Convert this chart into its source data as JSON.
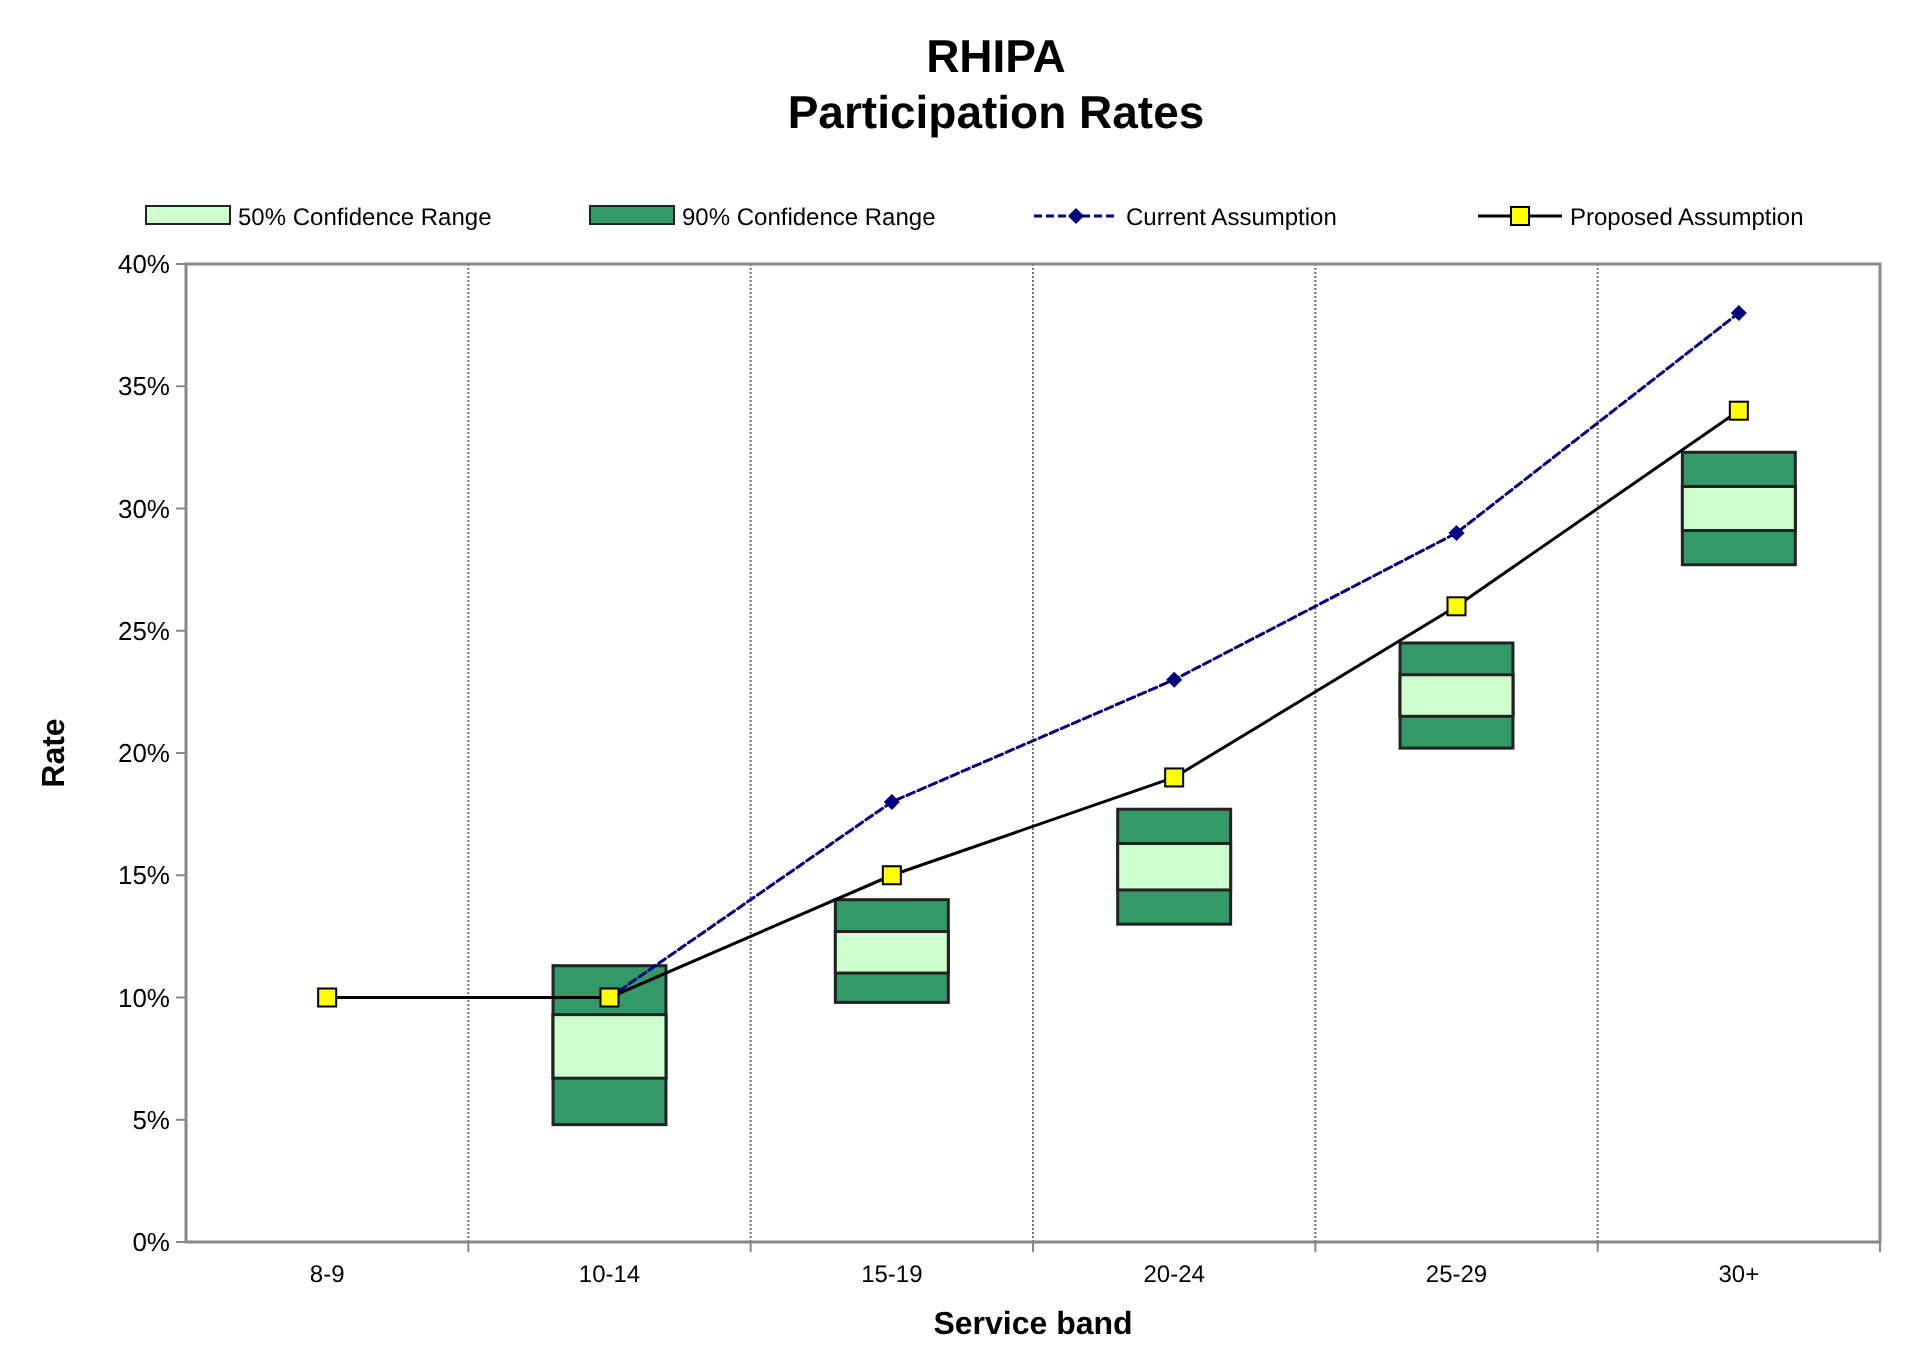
{
  "chart_data": {
    "type": "bar",
    "title": "RHIPA\nParticipation Rates",
    "xlabel": "Service band",
    "ylabel": "Rate",
    "categories": [
      "8-9",
      "10-14",
      "15-19",
      "20-24",
      "25-29",
      "30+"
    ],
    "series": [
      {
        "name": "50% Confidence Range",
        "color": "#ccffcc",
        "base": [
          null,
          6.7,
          11.0,
          14.4,
          21.5,
          29.1
        ],
        "values": [
          null,
          2.6,
          1.7,
          1.9,
          1.7,
          1.8
        ]
      },
      {
        "name": "90% Confidence Range",
        "color": "#339966",
        "base": [
          null,
          4.8,
          9.8,
          13.0,
          20.2,
          27.7
        ],
        "values": [
          null,
          6.5,
          4.2,
          4.7,
          4.3,
          4.6
        ]
      },
      {
        "name": "Current Assumption",
        "type": "line",
        "color": "#000080",
        "marker": "diamond",
        "line_style": "dashed",
        "values": [
          null,
          10,
          18,
          23,
          29,
          38
        ]
      },
      {
        "name": "Proposed Assumption",
        "type": "line",
        "color": "#ffff00",
        "marker": "square",
        "line_style": "solid",
        "values": [
          10,
          10,
          15,
          19,
          26,
          34
        ]
      }
    ],
    "ylim": [
      0,
      40
    ],
    "yticks": [
      {
        "value": 0,
        "label": "0%"
      },
      {
        "value": 5,
        "label": "5%"
      },
      {
        "value": 10,
        "label": "10%"
      },
      {
        "value": 15,
        "label": "15%"
      },
      {
        "value": 20,
        "label": "20%"
      },
      {
        "value": 25,
        "label": "25%"
      },
      {
        "value": 30,
        "label": "30%"
      },
      {
        "value": 35,
        "label": "35%"
      },
      {
        "value": 40,
        "label": "40%"
      }
    ],
    "grid": "x",
    "legend": "top"
  }
}
